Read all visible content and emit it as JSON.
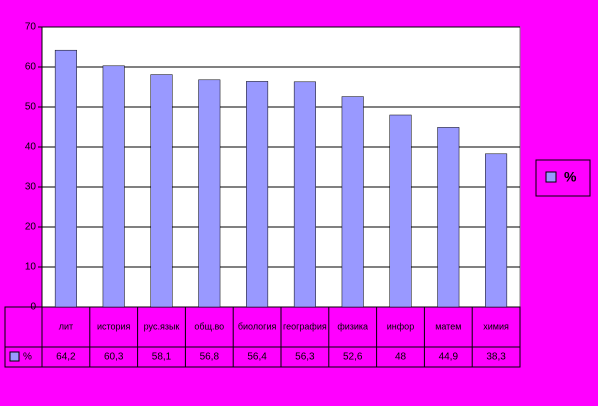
{
  "chart_data": {
    "type": "bar",
    "categories": [
      "лит",
      "история",
      "рус.язык",
      "общ.во",
      "биология",
      "география",
      "физика",
      "инфор",
      "матем",
      "химия"
    ],
    "series": [
      {
        "name": "%",
        "color": "#9999ff",
        "values": [
          64.2,
          60.3,
          58.1,
          56.8,
          56.4,
          56.3,
          52.6,
          48,
          44.9,
          38.3
        ],
        "value_labels": [
          "64,2",
          "60,3",
          "58,1",
          "56,8",
          "56,4",
          "56,3",
          "52,6",
          "48",
          "44,9",
          "38,3"
        ]
      }
    ],
    "ylim": [
      0,
      70
    ],
    "yticks": [
      0,
      10,
      20,
      30,
      40,
      50,
      60,
      70
    ],
    "grid": true,
    "legend": "right"
  }
}
